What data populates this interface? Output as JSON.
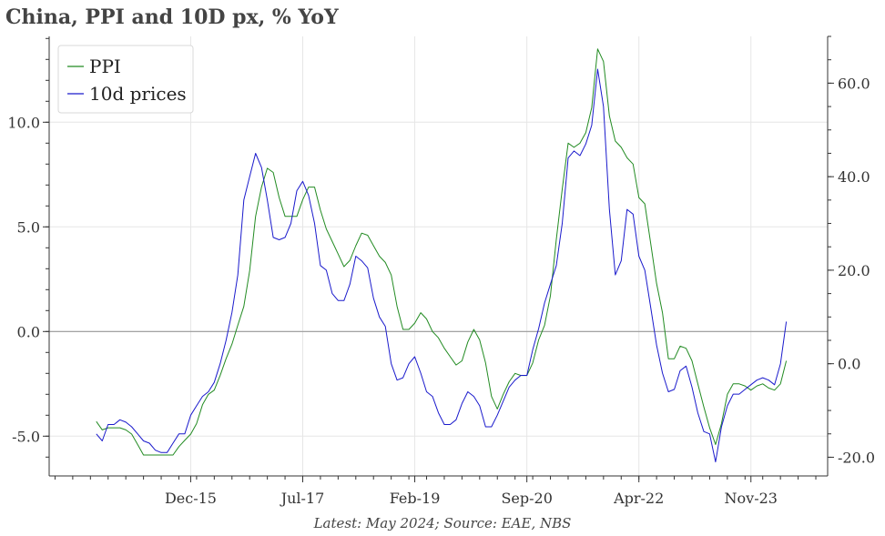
{
  "title": "China, PPI and 10D px, % YoY",
  "source": "Latest: May 2024; Source: EAE, NBS",
  "chart_data": {
    "type": "line",
    "x_range": [
      2013.917,
      2024.917
    ],
    "x_ticks": [
      {
        "label": "Dec-15",
        "x": 2015.917
      },
      {
        "label": "Jul-17",
        "x": 2017.5
      },
      {
        "label": "Feb-19",
        "x": 2019.083
      },
      {
        "label": "Sep-20",
        "x": 2020.667
      },
      {
        "label": "Apr-22",
        "x": 2022.25
      },
      {
        "label": "Nov-23",
        "x": 2023.833
      }
    ],
    "left_axis": {
      "ylim": [
        -6.9,
        14.1
      ],
      "ticks": [
        "-5.0",
        "0.0",
        "5.0",
        "10.0"
      ]
    },
    "right_axis": {
      "ylim": [
        -24.0,
        70.0
      ],
      "ticks": [
        "-20.0",
        "0.0",
        "20.0",
        "40.0",
        "60.0"
      ]
    },
    "zero_line": 0,
    "grid": true,
    "legend": "top-left",
    "colors": {
      "ppi": "#228B22",
      "prices10d": "#1a1acc",
      "zero": "#999999"
    },
    "series": [
      {
        "name": "PPI",
        "axis": "left",
        "points": [
          [
            2014.583,
            -4.3
          ],
          [
            2014.667,
            -4.7
          ],
          [
            2014.75,
            -4.6
          ],
          [
            2014.833,
            -4.6
          ],
          [
            2014.917,
            -4.6
          ],
          [
            2015.0,
            -4.7
          ],
          [
            2015.083,
            -4.9
          ],
          [
            2015.167,
            -5.4
          ],
          [
            2015.25,
            -5.9
          ],
          [
            2015.333,
            -5.9
          ],
          [
            2015.417,
            -5.9
          ],
          [
            2015.5,
            -5.9
          ],
          [
            2015.583,
            -5.9
          ],
          [
            2015.667,
            -5.9
          ],
          [
            2015.75,
            -5.5
          ],
          [
            2015.833,
            -5.2
          ],
          [
            2015.917,
            -4.9
          ],
          [
            2016.0,
            -4.4
          ],
          [
            2016.083,
            -3.5
          ],
          [
            2016.167,
            -3.0
          ],
          [
            2016.25,
            -2.8
          ],
          [
            2016.333,
            -2.1
          ],
          [
            2016.417,
            -1.3
          ],
          [
            2016.5,
            -0.6
          ],
          [
            2016.583,
            0.3
          ],
          [
            2016.667,
            1.2
          ],
          [
            2016.75,
            2.9
          ],
          [
            2016.833,
            5.5
          ],
          [
            2016.917,
            6.9
          ],
          [
            2017.0,
            7.8
          ],
          [
            2017.083,
            7.6
          ],
          [
            2017.167,
            6.4
          ],
          [
            2017.25,
            5.5
          ],
          [
            2017.333,
            5.5
          ],
          [
            2017.417,
            5.5
          ],
          [
            2017.5,
            6.3
          ],
          [
            2017.583,
            6.9
          ],
          [
            2017.667,
            6.9
          ],
          [
            2017.75,
            5.8
          ],
          [
            2017.833,
            4.9
          ],
          [
            2017.917,
            4.3
          ],
          [
            2018.0,
            3.7
          ],
          [
            2018.083,
            3.1
          ],
          [
            2018.167,
            3.4
          ],
          [
            2018.25,
            4.1
          ],
          [
            2018.333,
            4.7
          ],
          [
            2018.417,
            4.6
          ],
          [
            2018.5,
            4.1
          ],
          [
            2018.583,
            3.6
          ],
          [
            2018.667,
            3.3
          ],
          [
            2018.75,
            2.7
          ],
          [
            2018.833,
            1.2
          ],
          [
            2018.917,
            0.1
          ],
          [
            2019.0,
            0.1
          ],
          [
            2019.083,
            0.4
          ],
          [
            2019.167,
            0.9
          ],
          [
            2019.25,
            0.6
          ],
          [
            2019.333,
            0.0
          ],
          [
            2019.417,
            -0.3
          ],
          [
            2019.5,
            -0.8
          ],
          [
            2019.583,
            -1.2
          ],
          [
            2019.667,
            -1.6
          ],
          [
            2019.75,
            -1.4
          ],
          [
            2019.833,
            -0.5
          ],
          [
            2019.917,
            0.1
          ],
          [
            2020.0,
            -0.4
          ],
          [
            2020.083,
            -1.5
          ],
          [
            2020.167,
            -3.1
          ],
          [
            2020.25,
            -3.7
          ],
          [
            2020.333,
            -3.0
          ],
          [
            2020.417,
            -2.4
          ],
          [
            2020.5,
            -2.0
          ],
          [
            2020.583,
            -2.1
          ],
          [
            2020.667,
            -2.1
          ],
          [
            2020.75,
            -1.5
          ],
          [
            2020.833,
            -0.4
          ],
          [
            2020.917,
            0.3
          ],
          [
            2021.0,
            1.7
          ],
          [
            2021.083,
            4.4
          ],
          [
            2021.167,
            6.8
          ],
          [
            2021.25,
            9.0
          ],
          [
            2021.333,
            8.8
          ],
          [
            2021.417,
            9.0
          ],
          [
            2021.5,
            9.5
          ],
          [
            2021.583,
            10.7
          ],
          [
            2021.667,
            13.5
          ],
          [
            2021.75,
            12.9
          ],
          [
            2021.833,
            10.3
          ],
          [
            2021.917,
            9.1
          ],
          [
            2022.0,
            8.8
          ],
          [
            2022.083,
            8.3
          ],
          [
            2022.167,
            8.0
          ],
          [
            2022.25,
            6.4
          ],
          [
            2022.333,
            6.1
          ],
          [
            2022.417,
            4.2
          ],
          [
            2022.5,
            2.3
          ],
          [
            2022.583,
            0.9
          ],
          [
            2022.667,
            -1.3
          ],
          [
            2022.75,
            -1.3
          ],
          [
            2022.833,
            -0.7
          ],
          [
            2022.917,
            -0.8
          ],
          [
            2023.0,
            -1.4
          ],
          [
            2023.083,
            -2.5
          ],
          [
            2023.167,
            -3.6
          ],
          [
            2023.25,
            -4.6
          ],
          [
            2023.333,
            -5.4
          ],
          [
            2023.417,
            -4.4
          ],
          [
            2023.5,
            -3.0
          ],
          [
            2023.583,
            -2.5
          ],
          [
            2023.667,
            -2.5
          ],
          [
            2023.75,
            -2.6
          ],
          [
            2023.833,
            -2.8
          ],
          [
            2023.917,
            -2.6
          ],
          [
            2024.0,
            -2.5
          ],
          [
            2024.083,
            -2.7
          ],
          [
            2024.167,
            -2.8
          ],
          [
            2024.25,
            -2.5
          ],
          [
            2024.333,
            -1.4
          ]
        ]
      },
      {
        "name": "10d prices",
        "axis": "right",
        "points": [
          [
            2014.583,
            -15
          ],
          [
            2014.667,
            -16.5
          ],
          [
            2014.75,
            -13
          ],
          [
            2014.833,
            -13
          ],
          [
            2014.917,
            -12
          ],
          [
            2015.0,
            -12.5
          ],
          [
            2015.083,
            -13.5
          ],
          [
            2015.167,
            -15
          ],
          [
            2015.25,
            -16.5
          ],
          [
            2015.333,
            -17
          ],
          [
            2015.417,
            -18.5
          ],
          [
            2015.5,
            -19
          ],
          [
            2015.583,
            -19
          ],
          [
            2015.667,
            -17
          ],
          [
            2015.75,
            -15
          ],
          [
            2015.833,
            -15
          ],
          [
            2015.917,
            -11
          ],
          [
            2016.0,
            -9
          ],
          [
            2016.083,
            -7
          ],
          [
            2016.167,
            -6
          ],
          [
            2016.25,
            -4
          ],
          [
            2016.333,
            0
          ],
          [
            2016.417,
            5
          ],
          [
            2016.5,
            11
          ],
          [
            2016.583,
            19
          ],
          [
            2016.667,
            35
          ],
          [
            2016.75,
            40
          ],
          [
            2016.833,
            45
          ],
          [
            2016.917,
            42
          ],
          [
            2017.0,
            35
          ],
          [
            2017.083,
            27
          ],
          [
            2017.167,
            26.5
          ],
          [
            2017.25,
            27
          ],
          [
            2017.333,
            30
          ],
          [
            2017.417,
            37
          ],
          [
            2017.5,
            39
          ],
          [
            2017.583,
            36
          ],
          [
            2017.667,
            30
          ],
          [
            2017.75,
            21
          ],
          [
            2017.833,
            20
          ],
          [
            2017.917,
            15
          ],
          [
            2018.0,
            13.5
          ],
          [
            2018.083,
            13.5
          ],
          [
            2018.167,
            17
          ],
          [
            2018.25,
            23
          ],
          [
            2018.333,
            22
          ],
          [
            2018.417,
            20.5
          ],
          [
            2018.5,
            14
          ],
          [
            2018.583,
            10
          ],
          [
            2018.667,
            8
          ],
          [
            2018.75,
            0
          ],
          [
            2018.833,
            -3.5
          ],
          [
            2018.917,
            -3
          ],
          [
            2019.0,
            0
          ],
          [
            2019.083,
            1.5
          ],
          [
            2019.167,
            -2
          ],
          [
            2019.25,
            -6
          ],
          [
            2019.333,
            -7
          ],
          [
            2019.417,
            -10.5
          ],
          [
            2019.5,
            -13
          ],
          [
            2019.583,
            -13
          ],
          [
            2019.667,
            -12
          ],
          [
            2019.75,
            -8.5
          ],
          [
            2019.833,
            -6
          ],
          [
            2019.917,
            -7
          ],
          [
            2020.0,
            -9
          ],
          [
            2020.083,
            -13.5
          ],
          [
            2020.167,
            -13.5
          ],
          [
            2020.25,
            -11
          ],
          [
            2020.333,
            -8
          ],
          [
            2020.417,
            -5
          ],
          [
            2020.5,
            -3.5
          ],
          [
            2020.583,
            -2.5
          ],
          [
            2020.667,
            -2.5
          ],
          [
            2020.75,
            3
          ],
          [
            2020.833,
            7.5
          ],
          [
            2020.917,
            13
          ],
          [
            2021.0,
            17
          ],
          [
            2021.083,
            21
          ],
          [
            2021.167,
            30
          ],
          [
            2021.25,
            44
          ],
          [
            2021.333,
            45.5
          ],
          [
            2021.417,
            44.5
          ],
          [
            2021.5,
            47
          ],
          [
            2021.583,
            51
          ],
          [
            2021.667,
            63
          ],
          [
            2021.75,
            55
          ],
          [
            2021.833,
            33
          ],
          [
            2021.917,
            19
          ],
          [
            2022.0,
            22
          ],
          [
            2022.083,
            33
          ],
          [
            2022.167,
            32
          ],
          [
            2022.25,
            23
          ],
          [
            2022.333,
            20
          ],
          [
            2022.417,
            12
          ],
          [
            2022.5,
            4
          ],
          [
            2022.583,
            -2
          ],
          [
            2022.667,
            -6
          ],
          [
            2022.75,
            -5.5
          ],
          [
            2022.833,
            -1.5
          ],
          [
            2022.917,
            -0.5
          ],
          [
            2023.0,
            -5
          ],
          [
            2023.083,
            -10.5
          ],
          [
            2023.167,
            -14.5
          ],
          [
            2023.25,
            -15
          ],
          [
            2023.333,
            -21
          ],
          [
            2023.417,
            -13.5
          ],
          [
            2023.5,
            -9
          ],
          [
            2023.583,
            -6.5
          ],
          [
            2023.667,
            -6.5
          ],
          [
            2023.75,
            -5.5
          ],
          [
            2023.833,
            -4.5
          ],
          [
            2023.917,
            -3.5
          ],
          [
            2024.0,
            -3
          ],
          [
            2024.083,
            -3.5
          ],
          [
            2024.167,
            -4.5
          ],
          [
            2024.25,
            0
          ],
          [
            2024.333,
            9
          ]
        ]
      }
    ]
  }
}
